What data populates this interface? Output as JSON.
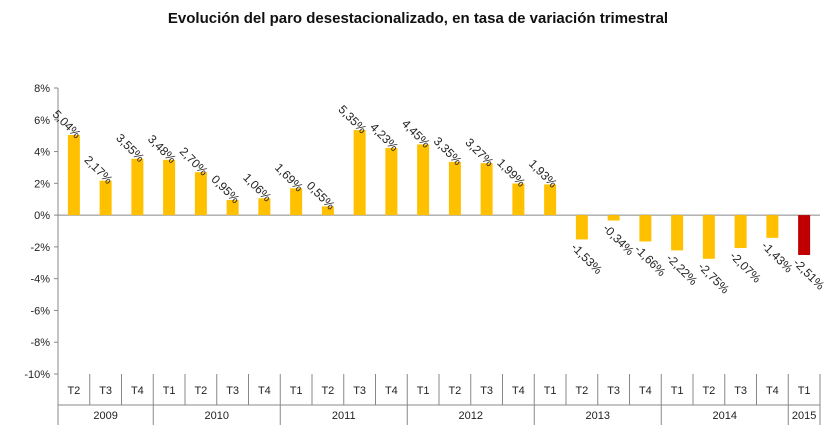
{
  "chart_data": {
    "type": "bar",
    "title": "Evolución del paro desestacionalizado, en tasa de variación trimestral",
    "xlabel": "",
    "ylabel": "",
    "ylim": [
      -10,
      8
    ],
    "yticks": [
      8,
      6,
      4,
      2,
      0,
      -2,
      -4,
      -6,
      -8,
      -10
    ],
    "ytick_labels": [
      "8%",
      "6%",
      "4%",
      "2%",
      "0%",
      "-2%",
      "-4%",
      "-6%",
      "-8%",
      "-10%"
    ],
    "categories": [
      "T2",
      "T3",
      "T4",
      "T1",
      "T2",
      "T3",
      "T4",
      "T1",
      "T2",
      "T3",
      "T4",
      "T1",
      "T2",
      "T3",
      "T4",
      "T1",
      "T2",
      "T3",
      "T4",
      "T1",
      "T2",
      "T3",
      "T4",
      "T1"
    ],
    "values": [
      5.04,
      2.17,
      3.55,
      3.48,
      2.7,
      0.95,
      1.06,
      1.69,
      0.55,
      5.35,
      4.23,
      4.45,
      3.35,
      3.27,
      1.99,
      1.93,
      -1.53,
      -0.34,
      -1.66,
      -2.22,
      -2.75,
      -2.07,
      -1.43,
      -2.51
    ],
    "labels": [
      "5,04%",
      "2,17%",
      "3,55%",
      "3,48%",
      "2,70%",
      "0,95%",
      "1,06%",
      "1,69%",
      "0,55%",
      "5,35%",
      "4,23%",
      "4,45%",
      "3,35%",
      "3,27%",
      "1,99%",
      "1,93%",
      "-1,53%",
      "-0,34%",
      "-1,66%",
      "-2,22%",
      "-2,75%",
      "-2,07%",
      "-1,43%",
      "-2,51%"
    ],
    "years": [
      {
        "label": "2009",
        "count": 3
      },
      {
        "label": "2010",
        "count": 4
      },
      {
        "label": "2011",
        "count": 4
      },
      {
        "label": "2012",
        "count": 4
      },
      {
        "label": "2013",
        "count": 4
      },
      {
        "label": "2014",
        "count": 4
      },
      {
        "label": "2015",
        "count": 1
      }
    ],
    "colors": {
      "default": "#FFC000",
      "highlight": "#C00000"
    },
    "highlight_index": 23,
    "grid": false
  }
}
